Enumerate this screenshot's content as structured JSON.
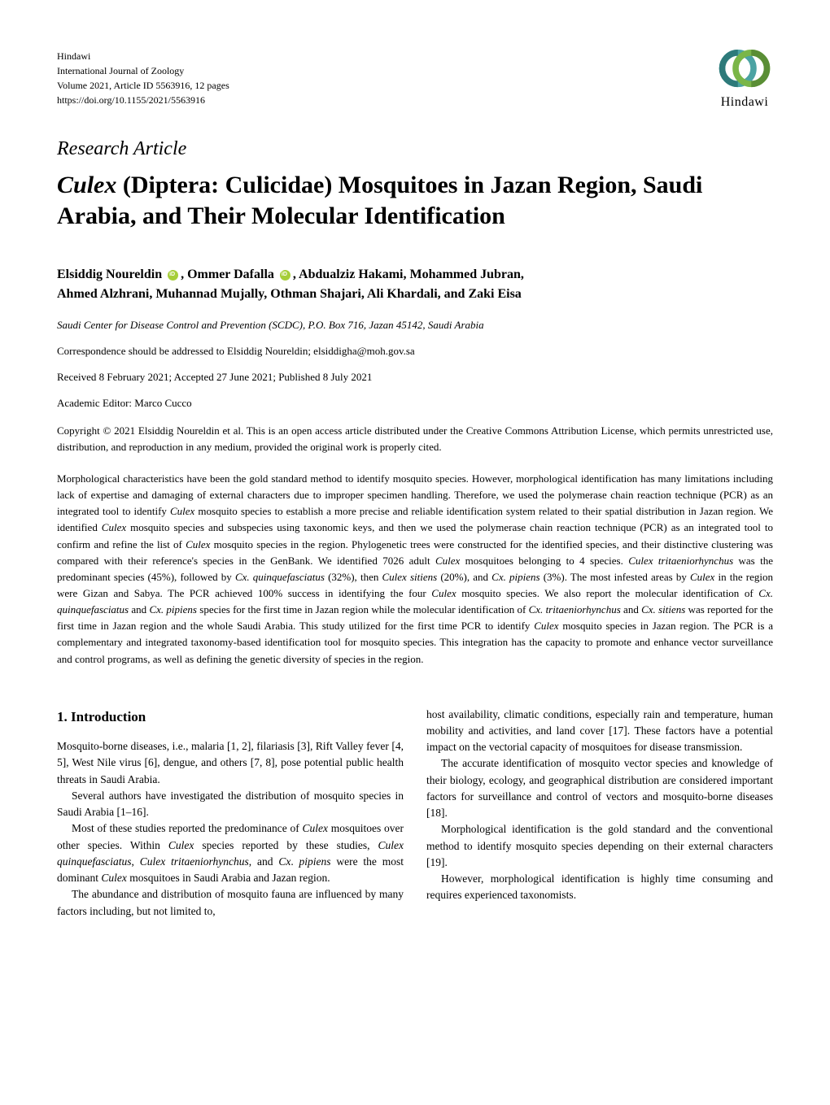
{
  "header": {
    "publisher": "Hindawi",
    "journal": "International Journal of Zoology",
    "volume_info": "Volume 2021, Article ID 5563916, 12 pages",
    "doi": "https://doi.org/10.1155/2021/5563916",
    "logo_text": "Hindawi",
    "logo_colors": {
      "teal": "#4ba3a3",
      "dark_teal": "#2d7a7a",
      "green": "#7ab648",
      "dark_green": "#5a8e35"
    }
  },
  "article_type": "Research Article",
  "title_prefix": "Culex",
  "title_rest": " (Diptera: Culicidae) Mosquitoes in Jazan Region, Saudi Arabia, and Their Molecular Identification",
  "authors": {
    "line1_a": "Elsiddig Noureldin",
    "line1_b": ", Ommer Dafalla",
    "line1_c": ", Abdualziz Hakami, Mohammed Jubran,",
    "line2": "Ahmed Alzhrani, Muhannad Mujally, Othman Shajari, Ali Khardali, and Zaki Eisa"
  },
  "affiliation": "Saudi Center for Disease Control and Prevention (SCDC), P.O. Box 716, Jazan 45142, Saudi Arabia",
  "correspondence": "Correspondence should be addressed to Elsiddig Noureldin; elsiddigha@moh.gov.sa",
  "dates": "Received 8 February 2021; Accepted 27 June 2021; Published 8 July 2021",
  "editor": "Academic Editor: Marco Cucco",
  "copyright": "Copyright © 2021 Elsiddig Noureldin et al. This is an open access article distributed under the Creative Commons Attribution License, which permits unrestricted use, distribution, and reproduction in any medium, provided the original work is properly cited.",
  "abstract": "Morphological characteristics have been the gold standard method to identify mosquito species. However, morphological identification has many limitations including lack of expertise and damaging of external characters due to improper specimen handling. Therefore, we used the polymerase chain reaction technique (PCR) as an integrated tool to identify <i>Culex</i> mosquito species to establish a more precise and reliable identification system related to their spatial distribution in Jazan region. We identified <i>Culex</i> mosquito species and subspecies using taxonomic keys, and then we used the polymerase chain reaction technique (PCR) as an integrated tool to confirm and refine the list of <i>Culex</i> mosquito species in the region. Phylogenetic trees were constructed for the identified species, and their distinctive clustering was compared with their reference's species in the GenBank. We identified 7026 adult <i>Culex</i> mosquitoes belonging to 4 species. <i>Culex tritaeniorhynchus</i> was the predominant species (45%), followed by <i>Cx. quinquefasciatus</i> (32%), then <i>Culex sitiens</i> (20%), and <i>Cx. pipiens</i> (3%). The most infested areas by <i>Culex</i> in the region were Gizan and Sabya. The PCR achieved 100% success in identifying the four <i>Culex</i> mosquito species. We also report the molecular identification of <i>Cx. quinquefasciatus</i> and <i>Cx. pipiens</i> species for the first time in Jazan region while the molecular identification of <i>Cx. tritaeniorhynchus</i> and <i>Cx. sitiens</i> was reported for the first time in Jazan region and the whole Saudi Arabia. This study utilized for the first time PCR to identify <i>Culex</i> mosquito species in Jazan region. The PCR is a complementary and integrated taxonomy-based identification tool for mosquito species. This integration has the capacity to promote and enhance vector surveillance and control programs, as well as defining the genetic diversity of species in the region.",
  "section_heading": "1. Introduction",
  "left_column": {
    "p1": "Mosquito-borne diseases, i.e., malaria [1, 2], filariasis [3], Rift Valley fever [4, 5], West Nile virus [6], dengue, and others [7, 8], pose potential public health threats in Saudi Arabia.",
    "p2": "Several authors have investigated the distribution of mosquito species in Saudi Arabia [1–16].",
    "p3": "Most of these studies reported the predominance of <i>Culex</i> mosquitoes over other species. Within <i>Culex</i> species reported by these studies, <i>Culex quinquefasciatus</i>, <i>Culex tritaeniorhynchus</i>, and <i>Cx</i>. <i>pipiens</i> were the most dominant <i>Culex</i> mosquitoes in Saudi Arabia and Jazan region.",
    "p4": "The abundance and distribution of mosquito fauna are influenced by many factors including, but not limited to,"
  },
  "right_column": {
    "p1": "host availability, climatic conditions, especially rain and temperature, human mobility and activities, and land cover [17]. These factors have a potential impact on the vectorial capacity of mosquitoes for disease transmission.",
    "p2": "The accurate identification of mosquito vector species and knowledge of their biology, ecology, and geographical distribution are considered important factors for surveillance and control of vectors and mosquito-borne diseases [18].",
    "p3": "Morphological identification is the gold standard and the conventional method to identify mosquito species depending on their external characters [19].",
    "p4": "However, morphological identification is highly time consuming and requires experienced taxonomists."
  }
}
